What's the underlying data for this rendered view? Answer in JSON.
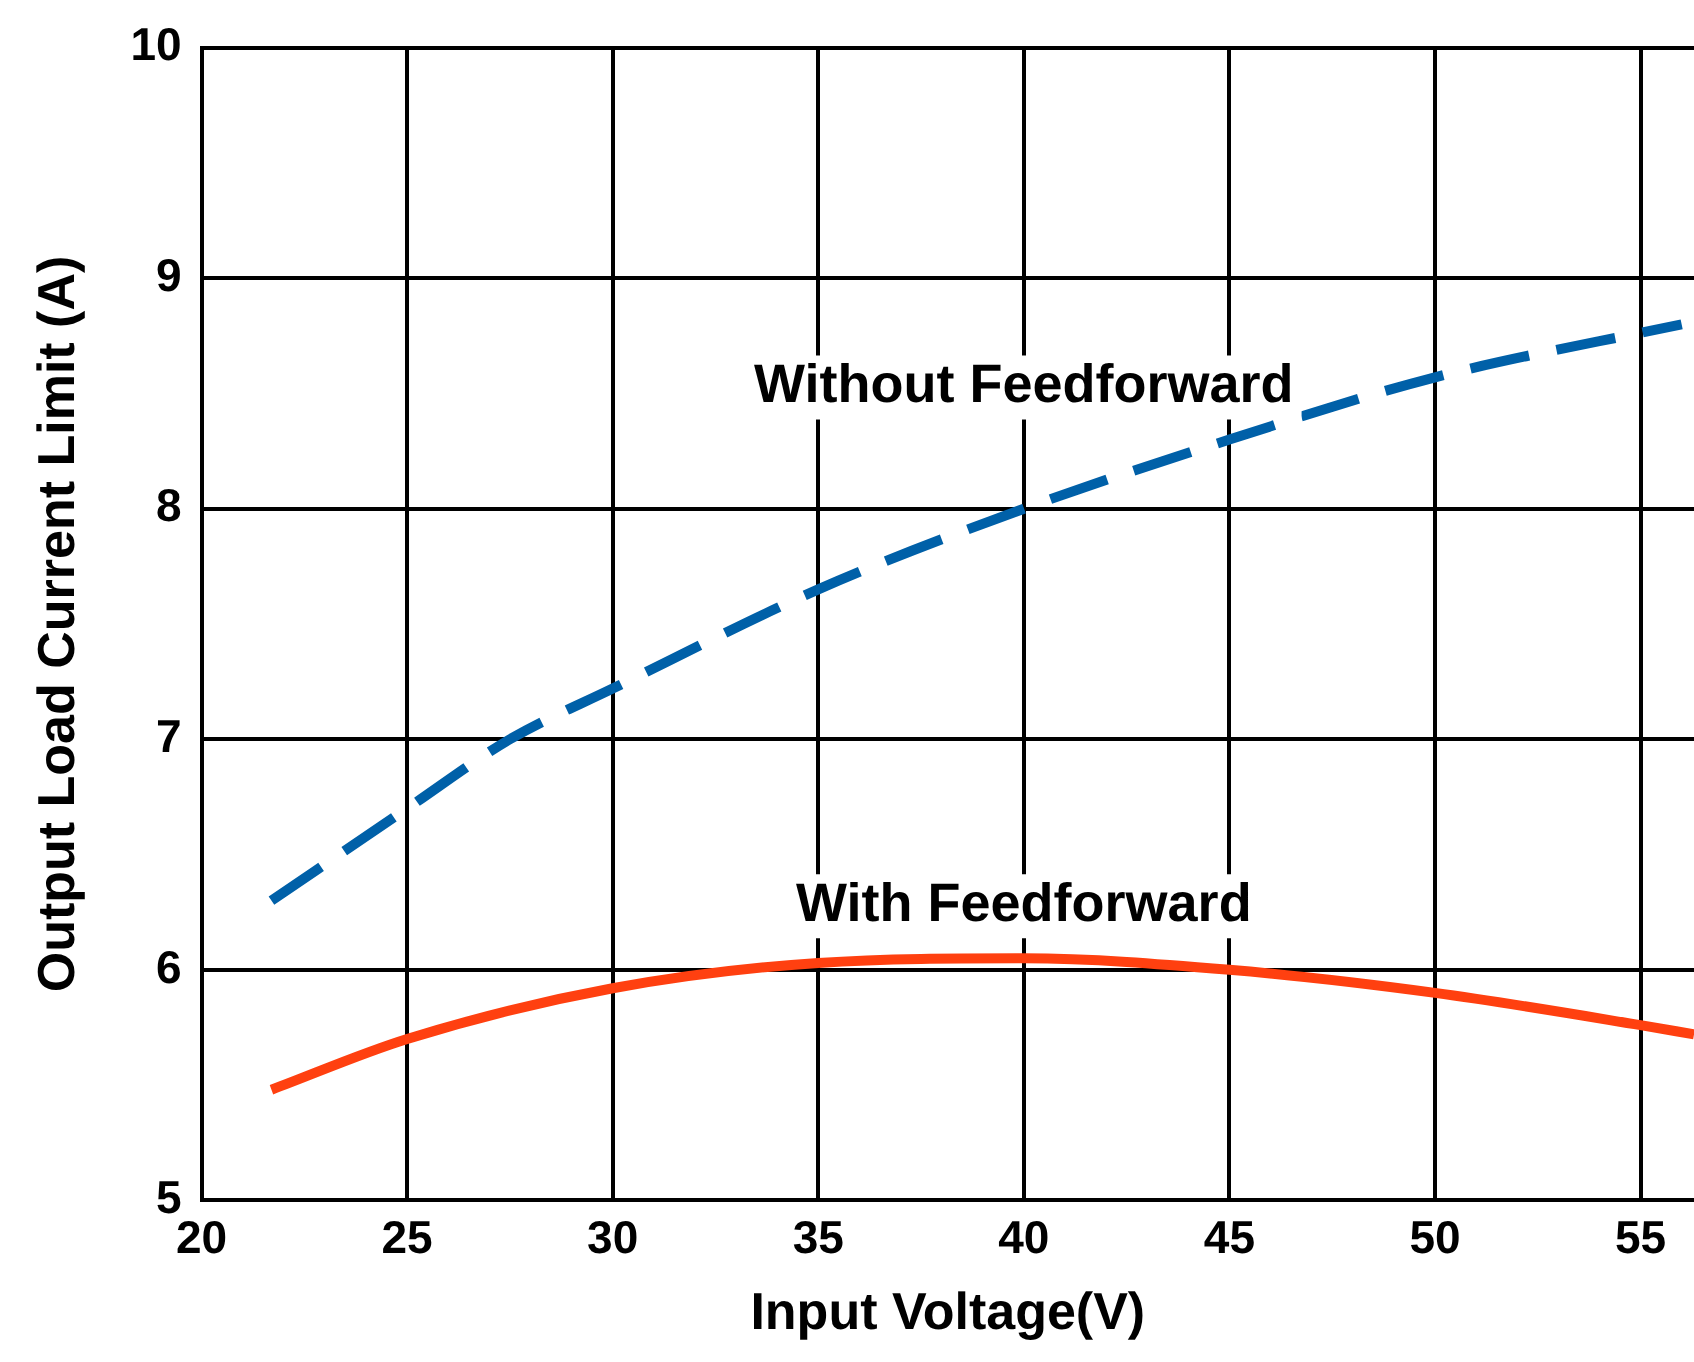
{
  "chart_data": {
    "type": "line",
    "xlabel": "Input Voltage(V)",
    "ylabel": "Output Load Current Limit (A)",
    "xlim": [
      20,
      56.3
    ],
    "xticks": [
      20,
      25,
      30,
      35,
      40,
      45,
      50,
      55
    ],
    "ylim": [
      5,
      10
    ],
    "yticks": [
      5,
      6,
      7,
      8,
      9,
      10
    ],
    "grid": true,
    "marker": "none",
    "series": [
      {
        "name": "Without Feedforward",
        "color": "#0060a8",
        "line_style": "dashed",
        "x": [
          21.7,
          25,
          27.5,
          30,
          35,
          40,
          45,
          50,
          56
        ],
        "values": [
          6.3,
          6.7,
          7.0,
          7.22,
          7.65,
          8.0,
          8.3,
          8.57,
          8.8
        ]
      },
      {
        "name": "With Feedforward",
        "color": "#ff4010",
        "line_style": "solid",
        "x": [
          21.7,
          25,
          30,
          35,
          40,
          45,
          50,
          55,
          56.3
        ],
        "values": [
          5.48,
          5.7,
          5.92,
          6.03,
          6.05,
          6.0,
          5.9,
          5.76,
          5.72
        ]
      }
    ]
  }
}
